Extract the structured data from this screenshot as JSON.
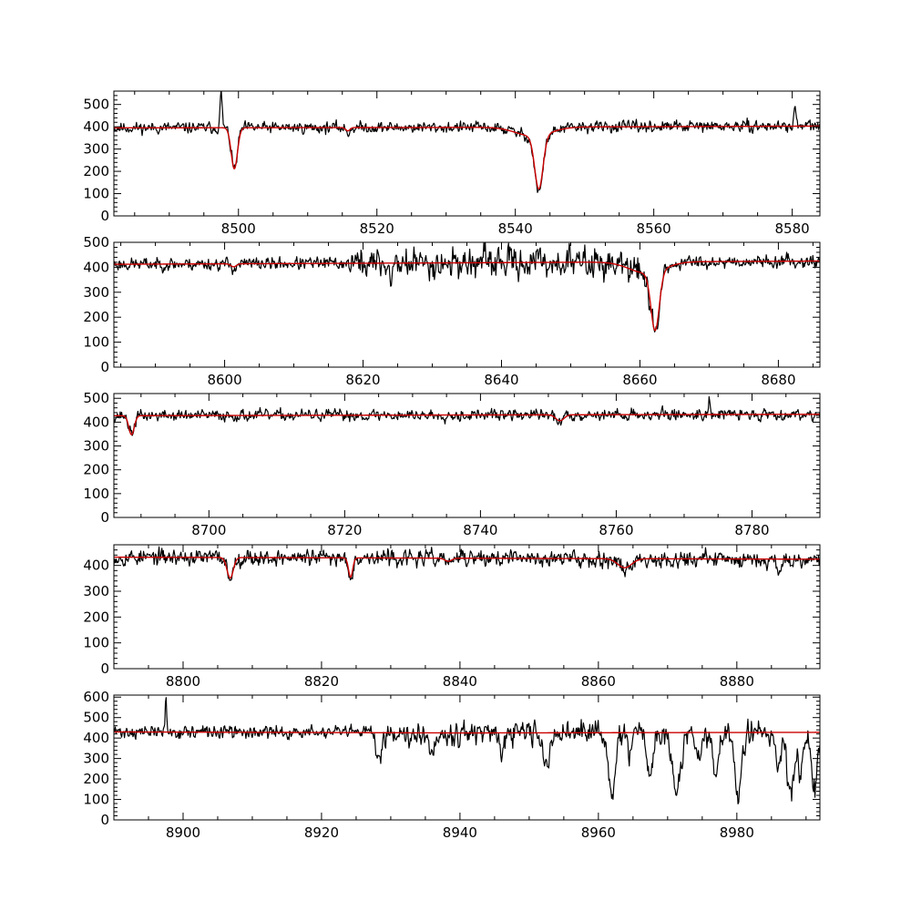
{
  "chart_data": [
    {
      "type": "line",
      "title": "",
      "xlabel": "",
      "ylabel": "",
      "xlim": [
        8482,
        8584
      ],
      "ylim": [
        0,
        560
      ],
      "xticks": [
        8500,
        8520,
        8540,
        8560,
        8580
      ],
      "yticks": [
        0,
        100,
        200,
        300,
        400,
        500
      ],
      "continuum": [
        [
          8482,
          395
        ],
        [
          8530,
          397
        ],
        [
          8584,
          403
        ]
      ],
      "series": [
        {
          "role": "observed",
          "color": "#000000",
          "noise": 18,
          "seed": 11,
          "lines": [
            [
              8499.4,
              -185,
              0.45
            ],
            [
              8543.4,
              -255,
              0.6
            ],
            [
              8542.6,
              -40,
              2.5
            ],
            [
              8515.8,
              -22,
              0.3
            ],
            [
              8497.5,
              155,
              0.15
            ],
            [
              8580.4,
              105,
              0.12
            ]
          ]
        },
        {
          "role": "model",
          "color": "#cc0000",
          "lines": [
            [
              8499.4,
              -185,
              0.45
            ],
            [
              8543.4,
              -240,
              0.6
            ],
            [
              8542.6,
              -40,
              2.5
            ],
            [
              8515.8,
              -15,
              0.3
            ]
          ]
        }
      ]
    },
    {
      "type": "line",
      "title": "",
      "xlabel": "",
      "ylabel": "",
      "xlim": [
        8584,
        8686
      ],
      "ylim": [
        0,
        500
      ],
      "xticks": [
        8600,
        8620,
        8640,
        8660,
        8680
      ],
      "yticks": [
        0,
        100,
        200,
        300,
        400,
        500
      ],
      "continuum": [
        [
          8584,
          412
        ],
        [
          8635,
          418
        ],
        [
          8686,
          425
        ]
      ],
      "series": [
        {
          "role": "observed",
          "color": "#000000",
          "noise": 18,
          "seed": 23,
          "noisy_from": 8618,
          "noisy_to": 8662,
          "noisy_scale": 2.4,
          "lines": [
            [
              8662.2,
              -245,
              0.6
            ],
            [
              8661.0,
              -45,
              2.5
            ],
            [
              8624.0,
              -55,
              0.3
            ],
            [
              8601.3,
              -15,
              0.4
            ]
          ]
        },
        {
          "role": "model",
          "color": "#cc0000",
          "lines": [
            [
              8662.2,
              -235,
              0.6
            ],
            [
              8661.0,
              -45,
              2.5
            ],
            [
              8601.3,
              -12,
              0.4
            ]
          ]
        }
      ]
    },
    {
      "type": "line",
      "title": "",
      "xlabel": "",
      "ylabel": "",
      "xlim": [
        8686,
        8790
      ],
      "ylim": [
        0,
        520
      ],
      "xticks": [
        8700,
        8720,
        8740,
        8760,
        8780
      ],
      "yticks": [
        0,
        100,
        200,
        300,
        400,
        500
      ],
      "continuum": [
        [
          8686,
          427
        ],
        [
          8738,
          430
        ],
        [
          8790,
          433
        ]
      ],
      "series": [
        {
          "role": "observed",
          "color": "#000000",
          "noise": 17,
          "seed": 37,
          "lines": [
            [
              8688.6,
              -75,
              0.4
            ],
            [
              8751.7,
              -25,
              0.6
            ],
            [
              8773.7,
              90,
              0.1
            ]
          ]
        },
        {
          "role": "model",
          "color": "#cc0000",
          "lines": [
            [
              8688.6,
              -80,
              0.4
            ],
            [
              8751.7,
              -25,
              0.6
            ]
          ]
        }
      ]
    },
    {
      "type": "line",
      "title": "",
      "xlabel": "",
      "ylabel": "",
      "xlim": [
        8790,
        8892
      ],
      "ylim": [
        0,
        480
      ],
      "xticks": [
        8800,
        8820,
        8840,
        8860,
        8880
      ],
      "yticks": [
        0,
        100,
        200,
        300,
        400
      ],
      "continuum": [
        [
          8790,
          432
        ],
        [
          8840,
          428
        ],
        [
          8892,
          424
        ]
      ],
      "series": [
        {
          "role": "observed",
          "color": "#000000",
          "noise": 22,
          "seed": 53,
          "lines": [
            [
              8806.8,
              -75,
              0.45
            ],
            [
              8824.2,
              -70,
              0.3
            ],
            [
              8838.3,
              -15,
              0.5
            ],
            [
              8863.8,
              -35,
              1.0
            ],
            [
              8886.0,
              -60,
              0.25
            ]
          ]
        },
        {
          "role": "model",
          "color": "#cc0000",
          "lines": [
            [
              8806.8,
              -80,
              0.45
            ],
            [
              8824.2,
              -75,
              0.3
            ],
            [
              8838.3,
              -12,
              0.5
            ],
            [
              8863.8,
              -35,
              1.0
            ]
          ]
        }
      ]
    },
    {
      "type": "line",
      "title": "",
      "xlabel": "",
      "ylabel": "",
      "xlim": [
        8890,
        8992
      ],
      "ylim": [
        0,
        610
      ],
      "xticks": [
        8900,
        8920,
        8940,
        8960,
        8980
      ],
      "yticks": [
        0,
        100,
        200,
        300,
        400,
        500,
        600
      ],
      "continuum": [
        [
          8890,
          430
        ],
        [
          8940,
          425
        ],
        [
          8992,
          428
        ]
      ],
      "series": [
        {
          "role": "observed",
          "color": "#000000",
          "noise": 22,
          "seed": 71,
          "noisy_from": 8927,
          "noisy_to": 8992,
          "noisy_scale": 1.8,
          "lines": [
            [
              8897.5,
              180,
              0.1
            ],
            [
              8928.3,
              -130,
              0.35
            ],
            [
              8936.0,
              -90,
              0.4
            ],
            [
              8946.0,
              -120,
              0.45
            ],
            [
              8952.5,
              -180,
              0.5
            ],
            [
              8962.0,
              -290,
              0.5
            ],
            [
              8964.5,
              -120,
              0.3
            ],
            [
              8967.4,
              -230,
              0.4
            ],
            [
              8971.3,
              -300,
              0.6
            ],
            [
              8974.5,
              -150,
              0.4
            ],
            [
              8977.0,
              -230,
              0.4
            ],
            [
              8980.2,
              -310,
              0.5
            ],
            [
              8986.0,
              -150,
              0.4
            ],
            [
              8987.8,
              -310,
              0.5
            ],
            [
              8989.2,
              -200,
              0.3
            ],
            [
              8991.2,
              -290,
              0.4
            ]
          ]
        },
        {
          "role": "model",
          "color": "#cc0000",
          "lines": []
        }
      ]
    }
  ]
}
